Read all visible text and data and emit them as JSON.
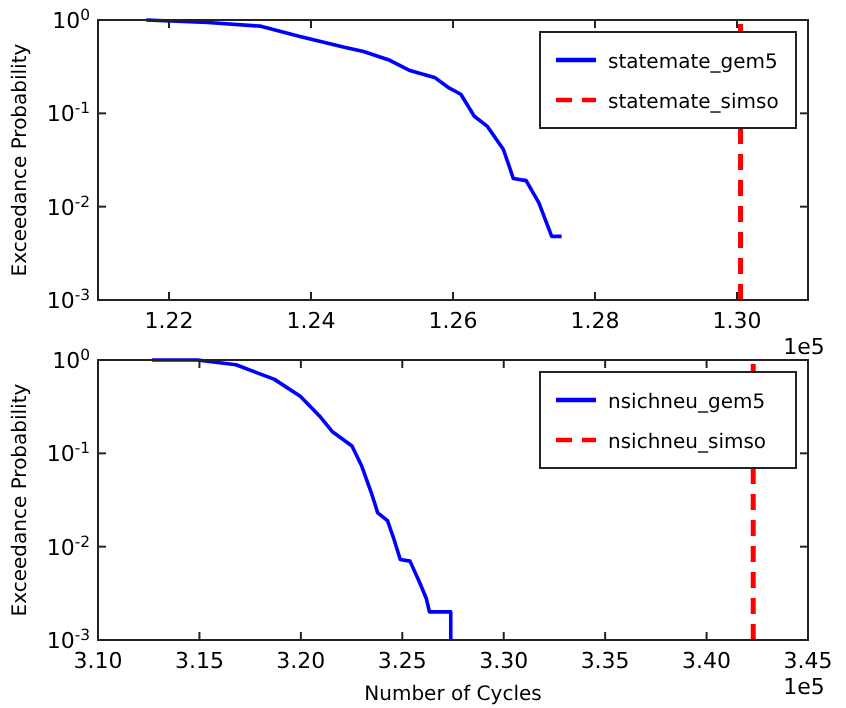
{
  "chart_data": [
    {
      "type": "line",
      "ylabel": "Exceedance Probability",
      "log": true,
      "legend": "top right",
      "grid": false,
      "annotations": [
        "1e5"
      ],
      "xlim": [
        1.21,
        1.31
      ],
      "xticks": [
        {
          "value": 1.22,
          "label": "1.22"
        },
        {
          "value": 1.24,
          "label": "1.24"
        },
        {
          "value": 1.26,
          "label": "1.26"
        },
        {
          "value": 1.28,
          "label": "1.28"
        },
        {
          "value": 1.3,
          "label": "1.30"
        }
      ],
      "ylim": [
        0.001,
        1
      ],
      "yticks": [
        {
          "value": 0.001,
          "label": "10$^{-3}$"
        },
        {
          "value": 0.01,
          "label": "10$^{-2}$"
        },
        {
          "value": 0.1,
          "label": "10$^{-1}$"
        },
        {
          "value": 1,
          "label": "10$^{0}$"
        }
      ],
      "series": [
        {
          "name": "statemate_gem5",
          "color": "#0000ff",
          "line_style": "solid",
          "x": [
            1.2168,
            1.2255,
            1.2328,
            1.2383,
            1.2447,
            1.2474,
            1.2511,
            1.2538,
            1.2575,
            1.2593,
            1.2611,
            1.263,
            1.2648,
            1.2671,
            1.2685,
            1.2703,
            1.2721,
            1.2739,
            1.2753
          ],
          "values": [
            1.0,
            0.94,
            0.86,
            0.67,
            0.51,
            0.46,
            0.37,
            0.29,
            0.24,
            0.19,
            0.16,
            0.093,
            0.073,
            0.041,
            0.02,
            0.019,
            0.011,
            0.0048,
            0.0048
          ]
        },
        {
          "name": "statemate_simso",
          "color": "#ff0000",
          "line_style": "dashed",
          "x": [
            1.3005,
            1.3005
          ],
          "values": [
            0.001,
            1
          ]
        }
      ]
    },
    {
      "type": "line",
      "xlabel": "Number of Cycles",
      "ylabel": "Exceedance Probability",
      "log": true,
      "legend": "top right",
      "grid": false,
      "annotations": [
        "1e5"
      ],
      "xlim": [
        3.1,
        3.45
      ],
      "xticks": [
        {
          "value": 3.1,
          "label": "3.10"
        },
        {
          "value": 3.15,
          "label": "3.15"
        },
        {
          "value": 3.2,
          "label": "3.20"
        },
        {
          "value": 3.25,
          "label": "3.25"
        },
        {
          "value": 3.3,
          "label": "3.30"
        },
        {
          "value": 3.35,
          "label": "3.35"
        },
        {
          "value": 3.4,
          "label": "3.40"
        },
        {
          "value": 3.45,
          "label": "3.45"
        }
      ],
      "ylim": [
        0.001,
        1
      ],
      "yticks": [
        {
          "value": 0.001,
          "label": "10$^{-3}$"
        },
        {
          "value": 0.01,
          "label": "10$^{-2}$"
        },
        {
          "value": 0.1,
          "label": "10$^{-1}$"
        },
        {
          "value": 1,
          "label": "10$^{0}$"
        }
      ],
      "series": [
        {
          "name": "nsichneu_gem5",
          "color": "#0000ff",
          "line_style": "solid",
          "x": [
            3.1267,
            3.149,
            3.168,
            3.187,
            3.1997,
            3.2093,
            3.2156,
            3.2252,
            3.23,
            3.2347,
            3.2379,
            3.2427,
            3.2459,
            3.249,
            3.2538,
            3.2586,
            3.2618,
            3.2634,
            3.2739,
            3.2739
          ],
          "values": [
            1.0,
            1.0,
            0.89,
            0.62,
            0.41,
            0.25,
            0.17,
            0.12,
            0.073,
            0.038,
            0.023,
            0.019,
            0.012,
            0.0073,
            0.007,
            0.0041,
            0.0028,
            0.002,
            0.002,
            0.001
          ]
        },
        {
          "name": "nsichneu_simso",
          "color": "#ff0000",
          "line_style": "dashed",
          "x": [
            3.423,
            3.423
          ],
          "values": [
            0.001,
            1
          ]
        }
      ]
    }
  ]
}
